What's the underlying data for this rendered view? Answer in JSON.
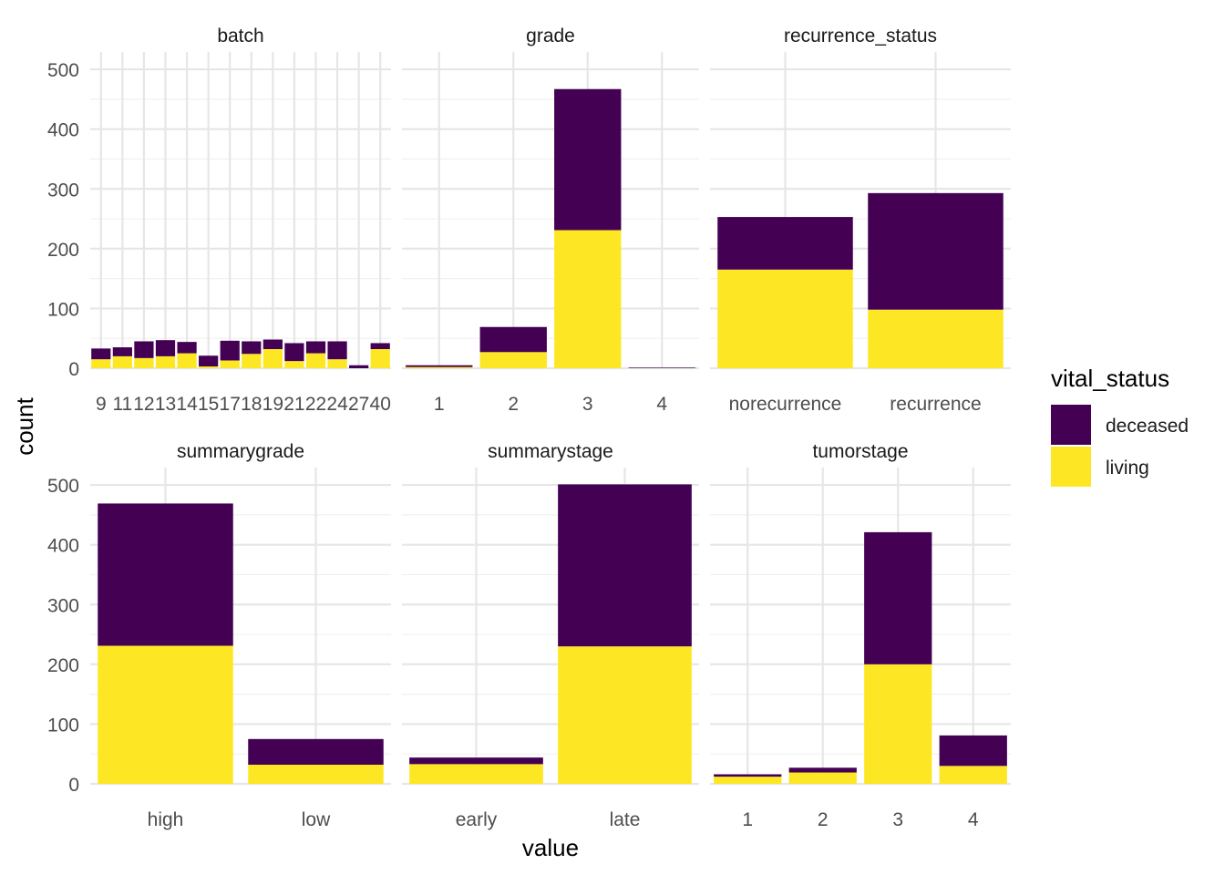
{
  "chart_data": {
    "type": "bar",
    "stacked": true,
    "facet_layout": "2x3",
    "xlabel": "value",
    "ylabel": "count",
    "ylim": [
      0,
      500
    ],
    "y_ticks": [
      0,
      100,
      200,
      300,
      400,
      500
    ],
    "grid": true,
    "legend": {
      "title": "vital_status",
      "placement": "right",
      "entries": [
        {
          "name": "deceased",
          "color": "#440154"
        },
        {
          "name": "living",
          "color": "#FDE725"
        }
      ]
    },
    "panels": [
      {
        "title": "batch",
        "categories": [
          "9",
          "11",
          "12",
          "13",
          "14",
          "15",
          "17",
          "18",
          "19",
          "21",
          "22",
          "24",
          "27",
          "40"
        ],
        "series": [
          {
            "name": "living",
            "values": [
              15,
              20,
              17,
              20,
              25,
              3,
              13,
              24,
              32,
              12,
              25,
              15,
              0,
              32
            ]
          },
          {
            "name": "deceased",
            "values": [
              18,
              15,
              28,
              27,
              19,
              18,
              33,
              21,
              16,
              30,
              20,
              30,
              5,
              10
            ]
          }
        ]
      },
      {
        "title": "grade",
        "categories": [
          "1",
          "2",
          "3",
          "4"
        ],
        "series": [
          {
            "name": "living",
            "values": [
              2,
              27,
              231,
              0
            ]
          },
          {
            "name": "deceased",
            "values": [
              3,
              42,
              236,
              1
            ]
          }
        ]
      },
      {
        "title": "recurrence_status",
        "categories": [
          "norecurrence",
          "recurrence"
        ],
        "series": [
          {
            "name": "living",
            "values": [
              165,
              98
            ]
          },
          {
            "name": "deceased",
            "values": [
              88,
              195
            ]
          }
        ]
      },
      {
        "title": "summarygrade",
        "categories": [
          "high",
          "low"
        ],
        "series": [
          {
            "name": "living",
            "values": [
              231,
              32
            ]
          },
          {
            "name": "deceased",
            "values": [
              238,
              43
            ]
          }
        ]
      },
      {
        "title": "summarystage",
        "categories": [
          "early",
          "late"
        ],
        "series": [
          {
            "name": "living",
            "values": [
              33,
              230
            ]
          },
          {
            "name": "deceased",
            "values": [
              11,
              271
            ]
          }
        ]
      },
      {
        "title": "tumorstage",
        "categories": [
          "1",
          "2",
          "3",
          "4"
        ],
        "series": [
          {
            "name": "living",
            "values": [
              12,
              19,
              200,
              30
            ]
          },
          {
            "name": "deceased",
            "values": [
              4,
              8,
              221,
              51
            ]
          }
        ]
      }
    ]
  }
}
